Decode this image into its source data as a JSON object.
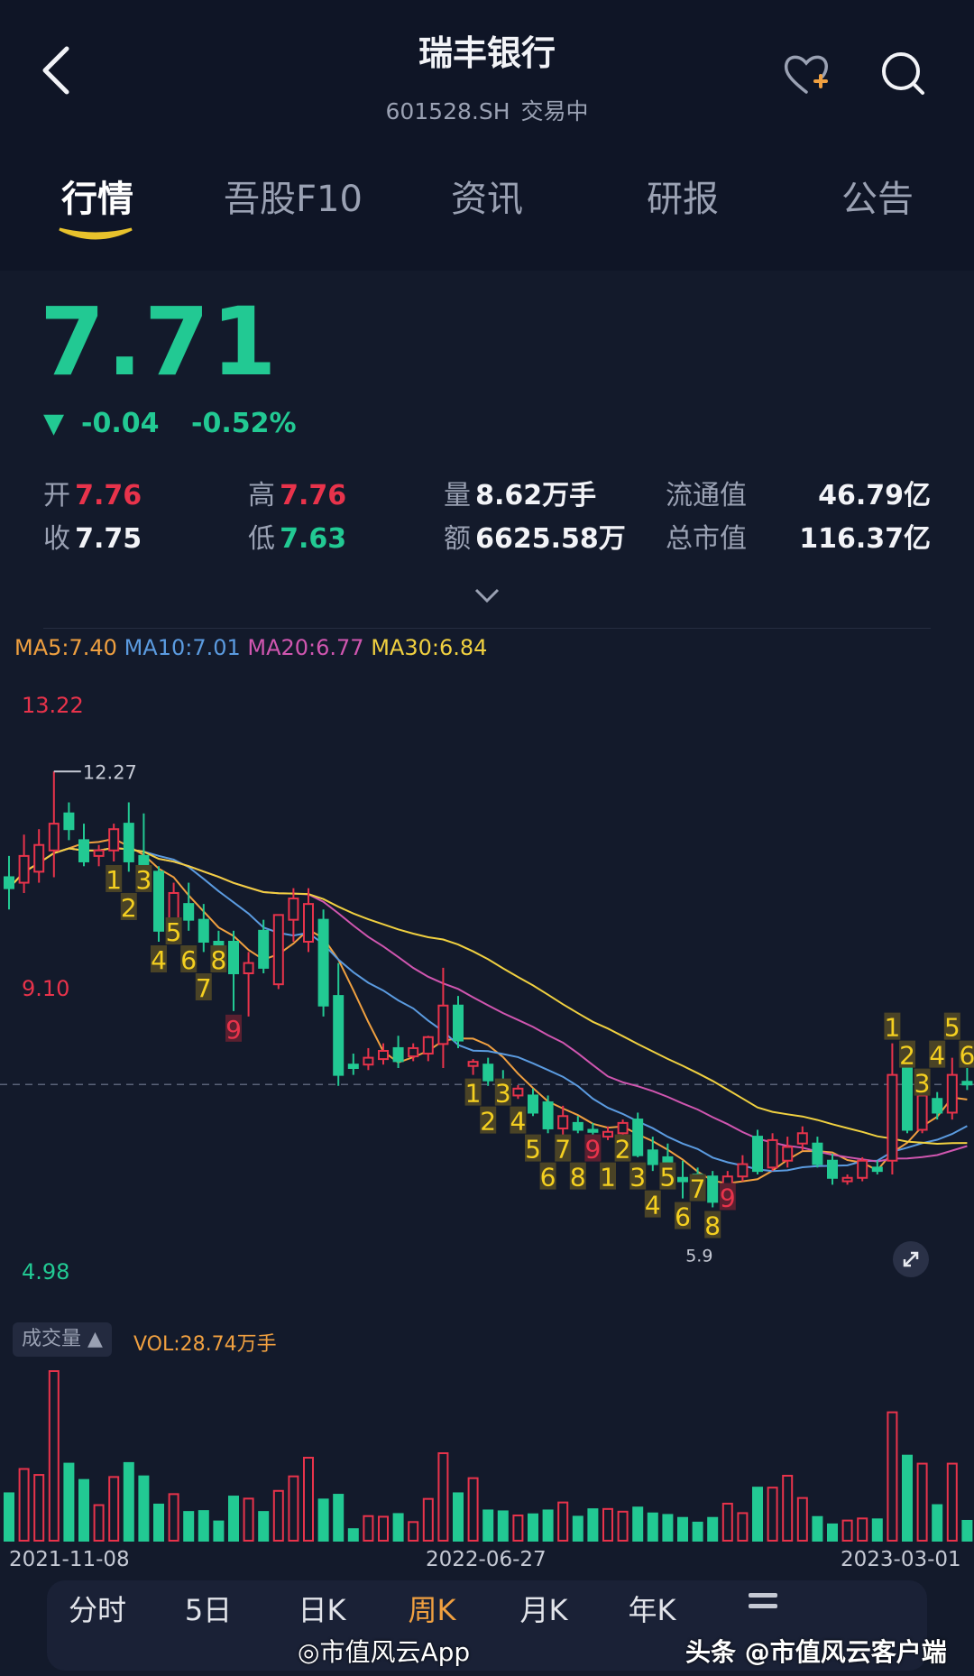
{
  "header": {
    "title": "瑞丰银行",
    "code": "601528.SH",
    "status": "交易中",
    "icons": {
      "back": "chevron-left-icon",
      "watch": "heart-plus-icon",
      "search": "search-icon"
    }
  },
  "tabs": [
    {
      "label": "行情",
      "active": true
    },
    {
      "label": "吾股F10",
      "active": false
    },
    {
      "label": "资讯",
      "active": false
    },
    {
      "label": "研报",
      "active": false
    },
    {
      "label": "公告",
      "active": false
    }
  ],
  "quote": {
    "price": "7.71",
    "change": "-0.04",
    "change_pct": "-0.52%",
    "open_label": "开",
    "open": "7.76",
    "close_label": "收",
    "close": "7.75",
    "high_label": "高",
    "high": "7.76",
    "low_label": "低",
    "low": "7.63",
    "volume_label": "量",
    "volume": "8.62万手",
    "amount_label": "额",
    "amount": "6625.58万",
    "float_cap_label": "流通值",
    "float_cap": "46.79亿",
    "total_cap_label": "总市值",
    "total_cap": "116.37亿"
  },
  "colors": {
    "up": "#e8334b",
    "down": "#22c993",
    "ma5": "#f0a040",
    "ma10": "#5b9be0",
    "ma20": "#d056b0",
    "ma30": "#f0d040",
    "active_period": "#f0a040"
  },
  "ma_legend": [
    {
      "label": "MA5:7.40",
      "color": "#f0a040"
    },
    {
      "label": "MA10:7.01",
      "color": "#5b9be0"
    },
    {
      "label": "MA20:6.77",
      "color": "#d056b0"
    },
    {
      "label": "MA30:6.84",
      "color": "#f0d040"
    }
  ],
  "chart_data": {
    "type": "candlestick",
    "period": "weekly",
    "y_axis_labels": [
      "13.22",
      "9.10",
      "4.98"
    ],
    "ylim": [
      4.98,
      13.22
    ],
    "current_price_line": 7.71,
    "max_label": "12.27",
    "min_label": "5.9",
    "x_labels": [
      "2021-11-08",
      "2022-06-27",
      "2023-03-01"
    ],
    "volume_label": "成交量",
    "volume_value": "VOL:28.74万手",
    "candles_ohlcv": [
      [
        10.73,
        11.04,
        10.26,
        10.57,
        68.6
      ],
      [
        10.65,
        11.35,
        10.5,
        11.04,
        103.8
      ],
      [
        10.81,
        11.43,
        10.65,
        11.2,
        95.2
      ],
      [
        11.12,
        12.27,
        10.73,
        11.51,
        245.4
      ],
      [
        11.66,
        11.82,
        11.27,
        11.43,
        111.5
      ],
      [
        11.27,
        11.51,
        10.89,
        10.96,
        87.9
      ],
      [
        11.04,
        11.2,
        10.89,
        11.12,
        51.5
      ],
      [
        11.12,
        11.51,
        10.96,
        11.43,
        92.2
      ],
      [
        11.51,
        11.82,
        10.81,
        10.96,
        112.4
      ],
      [
        11.04,
        11.66,
        10.73,
        10.81,
        93.1
      ],
      [
        10.81,
        10.89,
        9.79,
        9.95,
        52.3
      ],
      [
        10.11,
        10.65,
        9.95,
        10.5,
        67.4
      ],
      [
        10.34,
        10.65,
        9.95,
        10.11,
        41.6
      ],
      [
        10.11,
        10.34,
        9.64,
        9.79,
        42.9
      ],
      [
        9.79,
        9.95,
        9.48,
        9.64,
        27.9
      ],
      [
        9.79,
        9.95,
        8.78,
        9.33,
        63.9
      ],
      [
        9.33,
        9.64,
        8.7,
        9.48,
        60.9
      ],
      [
        9.95,
        10.11,
        9.33,
        9.41,
        41.6
      ],
      [
        9.17,
        9.95,
        9.1,
        10.18,
        72.1
      ],
      [
        10.11,
        10.57,
        9.79,
        10.42,
        93.1
      ],
      [
        9.79,
        10.57,
        9.64,
        10.34,
        120.1
      ],
      [
        10.11,
        10.26,
        8.7,
        8.86,
        59.6
      ],
      [
        9.0,
        9.48,
        7.69,
        7.85,
        66.5
      ],
      [
        8.0,
        8.16,
        7.85,
        7.95,
        16.7
      ],
      [
        8.0,
        8.24,
        7.92,
        8.1,
        35.6
      ],
      [
        8.08,
        8.31,
        8.0,
        8.2,
        34.7
      ],
      [
        8.24,
        8.42,
        7.95,
        8.05,
        38.6
      ],
      [
        8.12,
        8.31,
        8.05,
        8.24,
        27.0
      ],
      [
        8.16,
        8.42,
        8.05,
        8.4,
        60.5
      ],
      [
        8.3,
        9.41,
        7.95,
        8.86,
        126.6
      ],
      [
        8.86,
        9.0,
        8.24,
        8.35,
        68.6
      ],
      [
        7.98,
        8.08,
        7.85,
        8.04,
        90.5
      ],
      [
        8.0,
        8.1,
        7.69,
        7.77,
        43.8
      ],
      [
        7.77,
        7.92,
        7.46,
        7.53,
        42.5
      ],
      [
        7.55,
        7.7,
        7.5,
        7.65,
        36.5
      ],
      [
        7.55,
        7.65,
        7.25,
        7.3,
        38.2
      ],
      [
        7.45,
        7.55,
        7.0,
        7.07,
        43.8
      ],
      [
        7.07,
        7.4,
        6.95,
        7.25,
        55.3
      ],
      [
        7.15,
        7.25,
        7.0,
        7.05,
        34.7
      ],
      [
        7.05,
        7.15,
        6.9,
        7.02,
        45.5
      ],
      [
        6.95,
        7.1,
        6.9,
        7.02,
        45.9
      ],
      [
        7.0,
        7.2,
        6.95,
        7.15,
        42.0
      ],
      [
        7.2,
        7.3,
        6.65,
        6.68,
        48.0
      ],
      [
        6.75,
        6.95,
        6.45,
        6.55,
        39.5
      ],
      [
        6.65,
        6.85,
        6.3,
        6.4,
        37.3
      ],
      [
        6.35,
        6.6,
        6.05,
        6.3,
        33.0
      ],
      [
        6.4,
        6.5,
        6.2,
        6.28,
        26.2
      ],
      [
        6.37,
        6.45,
        5.92,
        6.0,
        33.0
      ],
      [
        6.0,
        6.45,
        5.95,
        6.37,
        53.6
      ],
      [
        6.37,
        6.68,
        6.3,
        6.55,
        39.9
      ],
      [
        6.95,
        7.05,
        6.4,
        6.45,
        76.8
      ],
      [
        6.5,
        7.0,
        6.45,
        6.9,
        76.8
      ],
      [
        6.6,
        6.95,
        6.5,
        6.8,
        94.0
      ],
      [
        6.85,
        7.1,
        6.75,
        7.0,
        61.8
      ],
      [
        6.85,
        6.95,
        6.5,
        6.55,
        34.3
      ],
      [
        6.6,
        6.7,
        6.25,
        6.35,
        23.6
      ],
      [
        6.3,
        6.4,
        6.25,
        6.35,
        29.2
      ],
      [
        6.35,
        6.65,
        6.3,
        6.6,
        32.2
      ],
      [
        6.5,
        6.6,
        6.4,
        6.45,
        30.9
      ],
      [
        6.6,
        8.31,
        6.4,
        7.85,
        185.8
      ],
      [
        7.95,
        8.0,
        7.0,
        7.05,
        123.1
      ],
      [
        7.05,
        7.7,
        7.0,
        7.55,
        111.5
      ],
      [
        7.5,
        7.6,
        7.2,
        7.3,
        51.5
      ],
      [
        7.3,
        8.1,
        7.2,
        7.85,
        111.5
      ],
      [
        7.75,
        7.95,
        7.63,
        7.71,
        28.74
      ]
    ],
    "turn_labels": [
      {
        "candle": 7,
        "n": "1",
        "side": "below"
      },
      {
        "candle": 8,
        "n": "2",
        "side": "below"
      },
      {
        "candle": 9,
        "n": "3",
        "side": "below"
      },
      {
        "candle": 10,
        "n": "4",
        "side": "below"
      },
      {
        "candle": 11,
        "n": "5",
        "side": "below"
      },
      {
        "candle": 12,
        "n": "6",
        "side": "below"
      },
      {
        "candle": 13,
        "n": "7",
        "side": "below"
      },
      {
        "candle": 14,
        "n": "8",
        "side": "below"
      },
      {
        "candle": 15,
        "n": "9",
        "side": "below",
        "red": true
      },
      {
        "candle": 31,
        "n": "1",
        "side": "below"
      },
      {
        "candle": 32,
        "n": "2",
        "side": "below"
      },
      {
        "candle": 33,
        "n": "3",
        "side": "below"
      },
      {
        "candle": 34,
        "n": "4",
        "side": "below"
      },
      {
        "candle": 35,
        "n": "5",
        "side": "below"
      },
      {
        "candle": 36,
        "n": "6",
        "side": "below"
      },
      {
        "candle": 37,
        "n": "7",
        "side": "below"
      },
      {
        "candle": 38,
        "n": "8",
        "side": "below"
      },
      {
        "candle": 39,
        "n": "9",
        "side": "below",
        "red": true
      },
      {
        "candle": 40,
        "n": "1",
        "side": "below"
      },
      {
        "candle": 41,
        "n": "2",
        "side": "below"
      },
      {
        "candle": 42,
        "n": "3",
        "side": "below"
      },
      {
        "candle": 43,
        "n": "4",
        "side": "below"
      },
      {
        "candle": 44,
        "n": "5",
        "side": "below"
      },
      {
        "candle": 45,
        "n": "6",
        "side": "below"
      },
      {
        "candle": 46,
        "n": "7",
        "side": "below"
      },
      {
        "candle": 47,
        "n": "8",
        "side": "below"
      },
      {
        "candle": 48,
        "n": "9",
        "side": "below",
        "red": true
      },
      {
        "candle": 59,
        "n": "1",
        "side": "above"
      },
      {
        "candle": 60,
        "n": "2",
        "side": "above"
      },
      {
        "candle": 61,
        "n": "3",
        "side": "above"
      },
      {
        "candle": 62,
        "n": "4",
        "side": "above"
      },
      {
        "candle": 63,
        "n": "5",
        "side": "above"
      },
      {
        "candle": 64,
        "n": "6",
        "side": "above"
      }
    ]
  },
  "periods": [
    {
      "label": "分时",
      "active": false
    },
    {
      "label": "5日",
      "active": false
    },
    {
      "label": "日K",
      "active": false
    },
    {
      "label": "周K",
      "active": true
    },
    {
      "label": "月K",
      "active": false
    },
    {
      "label": "年K",
      "active": false
    }
  ],
  "watermarks": {
    "weibo": "市值风云App",
    "toutiao": "头条 @市值风云客户端"
  }
}
